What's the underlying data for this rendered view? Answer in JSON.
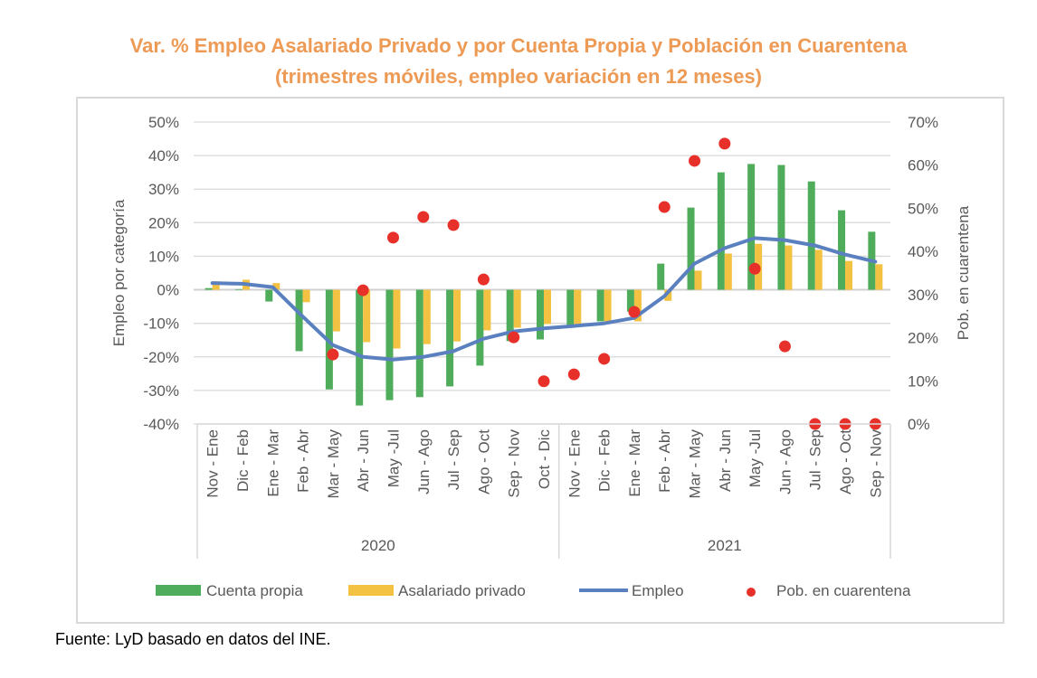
{
  "chart_data": {
    "type": "bar",
    "title": "Var. % Empleo Asalariado Privado y por Cuenta Propia y Población en Cuarentena",
    "subtitle": "(trimestres móviles, empleo variación en 12 meses)",
    "ylabel": "Empleo por categoría",
    "y2label": "Pob. en cuarentena",
    "ylim": [
      -40,
      50
    ],
    "y2lim": [
      0,
      70
    ],
    "yticks": [
      "50%",
      "40%",
      "30%",
      "20%",
      "10%",
      "0%",
      "-10%",
      "-20%",
      "-30%",
      "-40%"
    ],
    "y2ticks": [
      "70%",
      "60%",
      "50%",
      "40%",
      "30%",
      "20%",
      "10%",
      "0%"
    ],
    "grid": true,
    "legend_position": "bottom",
    "groups": [
      {
        "label": "2020",
        "count": 12
      },
      {
        "label": "2021",
        "count": 11
      }
    ],
    "categories": [
      "Nov - Ene",
      "Dic - Feb",
      "Ene - Mar",
      "Feb - Abr",
      "Mar - May",
      "Abr - Jun",
      "May -Jul",
      "Jun - Ago",
      "Jul - Sep",
      "Ago - Oct",
      "Sep - Nov",
      "Oct - Dic",
      "Nov - Ene",
      "Dic - Feb",
      "Ene - Mar",
      "Feb - Abr",
      "Mar - May",
      "Abr - Jun",
      "May -Jul",
      "Jun - Ago",
      "Jul - Sep",
      "Ago - Oct",
      "Sep - Nov"
    ],
    "series": [
      {
        "name": "Cuenta propia",
        "type": "bar",
        "axis": "left",
        "color": "#4eac5b",
        "values": [
          0.5,
          0.2,
          -3.5,
          -18.3,
          -29.7,
          -34.5,
          -32.9,
          -32.0,
          -28.8,
          -22.6,
          -15.3,
          -14.8,
          -10.8,
          -9.4,
          -6.5,
          7.8,
          24.5,
          35.0,
          37.5,
          37.2,
          32.3,
          23.7,
          17.3
        ]
      },
      {
        "name": "Asalariado privado",
        "type": "bar",
        "axis": "left",
        "color": "#f4c242",
        "values": [
          2.5,
          3.0,
          2.0,
          -3.7,
          -12.4,
          -15.6,
          -17.5,
          -16.2,
          -15.4,
          -12.1,
          -11.3,
          -10.2,
          -10.2,
          -9.4,
          -9.4,
          -3.3,
          5.7,
          10.8,
          13.7,
          13.2,
          11.9,
          8.6,
          7.6
        ]
      },
      {
        "name": "Empleo",
        "type": "line",
        "axis": "left",
        "color": "#5a80c0",
        "values": [
          2.0,
          1.8,
          0.8,
          -8.0,
          -16.5,
          -20.0,
          -20.8,
          -20.0,
          -18.3,
          -14.6,
          -12.4,
          -11.5,
          -10.8,
          -10.0,
          -8.4,
          -1.9,
          7.8,
          12.4,
          15.4,
          14.8,
          13.2,
          10.5,
          8.4
        ]
      },
      {
        "name": "Pob. en cuarentena",
        "type": "scatter",
        "axis": "right",
        "color": "#e8302a",
        "values": [
          null,
          null,
          null,
          null,
          16.1,
          31.0,
          43.2,
          48.0,
          46.1,
          33.5,
          20.1,
          9.9,
          11.5,
          15.1,
          26.0,
          50.3,
          61.0,
          65.0,
          36.0,
          18.0,
          0,
          0,
          0
        ]
      }
    ]
  },
  "footer": "Fuente: LyD basado en datos del INE."
}
